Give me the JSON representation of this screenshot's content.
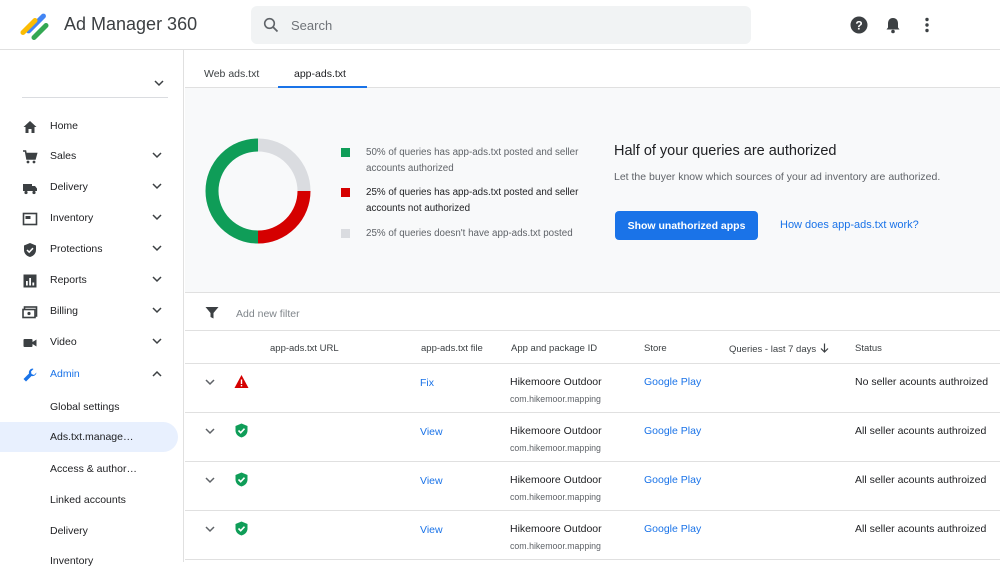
{
  "header": {
    "app_title": "Ad Manager 360",
    "search_placeholder": "Search",
    "icons": [
      "help-icon",
      "notifications-icon",
      "more-vert-icon"
    ]
  },
  "sidebar": {
    "network_value": "",
    "items": [
      {
        "label": "Home",
        "icon": "home-icon",
        "expandable": false
      },
      {
        "label": "Sales",
        "icon": "cart-icon",
        "expandable": true
      },
      {
        "label": "Delivery",
        "icon": "truck-icon",
        "expandable": true
      },
      {
        "label": "Inventory",
        "icon": "inventory-icon",
        "expandable": true
      },
      {
        "label": "Protections",
        "icon": "shield-icon",
        "expandable": true
      },
      {
        "label": "Reports",
        "icon": "reports-icon",
        "expandable": true
      },
      {
        "label": "Billing",
        "icon": "billing-icon",
        "expandable": true
      },
      {
        "label": "Video",
        "icon": "video-icon",
        "expandable": true
      },
      {
        "label": "Admin",
        "icon": "wrench-icon",
        "expandable": true,
        "expanded": true
      }
    ],
    "admin_subitems": [
      {
        "label": "Global settings",
        "active": false
      },
      {
        "label": "Ads.txt.manage…",
        "active": true
      },
      {
        "label": "Access & author…",
        "active": false
      },
      {
        "label": "Linked accounts",
        "active": false
      },
      {
        "label": "Delivery",
        "active": false
      },
      {
        "label": "Inventory",
        "active": false
      }
    ]
  },
  "tabs": [
    {
      "label": "Web ads.txt",
      "active": false
    },
    {
      "label": "app-ads.txt",
      "active": true
    }
  ],
  "summary": {
    "chart_data": {
      "type": "pie",
      "slices": [
        {
          "label": "50% of queries has app-ads.txt posted and seller accounts authorized",
          "value": 50,
          "color": "#0f9d58"
        },
        {
          "label": "25% of queries has app-ads.txt posted and seller accounts not authorized",
          "value": 25,
          "color": "#d50000"
        },
        {
          "label": "25% of queries doesn't have app-ads.txt posted",
          "value": 25,
          "color": "#dadce0"
        }
      ]
    },
    "legend": [
      {
        "text": "50% of queries has app-ads.txt posted and seller accounts authorized",
        "color": "#0f9d58"
      },
      {
        "text": " 25% of queries has app-ads.txt posted and seller accounts not authorized",
        "color": "#d50000"
      },
      {
        "text": "25% of queries doesn't have app-ads.txt posted",
        "color": "#dadce0"
      }
    ],
    "title": "Half of your queries are authorized",
    "description": "Let the buyer know which sources of your ad inventory are authorized.",
    "primary_button": "Show unathorized apps",
    "help_link": "How does app-ads.txt work?"
  },
  "filter": {
    "placeholder": "Add new filter"
  },
  "table": {
    "columns": [
      "app-ads.txt URL",
      "app-ads.txt file",
      "App and package ID",
      "Store",
      "Queries - last 7 days",
      "Status"
    ],
    "sort_column": "Queries - last 7 days",
    "rows": [
      {
        "status_icon": "warning-icon",
        "url": "",
        "file": "Fix",
        "app": "Hikemoore Outdoor",
        "package": "com.hikemoor.mapping",
        "store": "Google Play",
        "queries": "",
        "status": "No seller acounts authroized"
      },
      {
        "status_icon": "shield-check-icon",
        "url": "",
        "file": "View",
        "app": "Hikemoore Outdoor",
        "package": "com.hikemoor.mapping",
        "store": "Google Play",
        "queries": "",
        "status": "All seller acounts authroized"
      },
      {
        "status_icon": "shield-check-icon",
        "url": "",
        "file": "View",
        "app": "Hikemoore Outdoor",
        "package": "com.hikemoor.mapping",
        "store": "Google Play",
        "queries": "",
        "status": "All seller acounts authroized"
      },
      {
        "status_icon": "shield-check-icon",
        "url": "",
        "file": "View",
        "app": "Hikemoore Outdoor",
        "package": "com.hikemoor.mapping",
        "store": "Google Play",
        "queries": "",
        "status": "All seller acounts authroized"
      }
    ]
  },
  "colors": {
    "accent": "#1a73e8",
    "authorized": "#0f9d58",
    "unauthorized": "#d50000",
    "not_posted": "#dadce0"
  }
}
